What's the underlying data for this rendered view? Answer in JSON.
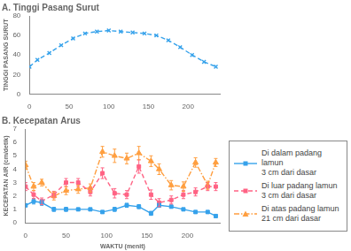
{
  "chart_data": [
    {
      "type": "line",
      "title": "A. Tinggi Pasang Surut",
      "y_label": "TINGGI PASANG SURUT",
      "x": [
        0,
        10,
        25,
        40,
        55,
        70,
        85,
        100,
        115,
        130,
        145,
        160,
        175,
        190,
        205,
        220,
        235
      ],
      "series": [
        {
          "values": [
            28,
            35,
            42,
            50,
            57,
            62,
            64,
            65,
            64,
            63,
            62,
            60,
            55,
            48,
            40,
            33,
            28
          ],
          "color": "#36a2eb",
          "marker": "x",
          "line_style": "dashed"
        }
      ],
      "xlim": [
        0,
        240
      ],
      "ylim": [
        0,
        80
      ],
      "xticks": [
        0,
        50,
        100,
        150,
        200
      ],
      "yticks": [
        0,
        20,
        40,
        60,
        80
      ],
      "grid": false
    },
    {
      "type": "line",
      "title": "B. Kecepatan Arus",
      "x_label": "WAKTU (menit)",
      "y_label": "KECEPATAN AIR (cm/detik)",
      "x": [
        0,
        10,
        20,
        35,
        50,
        65,
        80,
        95,
        110,
        125,
        140,
        155,
        165,
        180,
        195,
        210,
        225,
        235
      ],
      "series": [
        {
          "name": "Di dalam padang lamun\n3 cm dari dasar",
          "color": "#36a2eb",
          "marker": "square",
          "line_style": "solid",
          "values": [
            1.3,
            1.6,
            1.5,
            1.0,
            1.0,
            1.0,
            1.0,
            0.8,
            1.0,
            1.3,
            1.2,
            0.7,
            1.3,
            1.2,
            1.0,
            0.8,
            0.8,
            0.5
          ],
          "errors": [
            0.1,
            0.2,
            0.2,
            0.15,
            0.15,
            0.1,
            0.1,
            0.1,
            0.15,
            0.15,
            0.15,
            0.15,
            0.15,
            0.1,
            0.1,
            0.1,
            0.1,
            0.1
          ]
        },
        {
          "name": "Di luar padang lamun\n3 cm dari dasar",
          "color": "#ff6384",
          "marker": "square",
          "line_style": "dashed",
          "values": [
            2.7,
            2.1,
            1.6,
            2.1,
            3.0,
            3.0,
            2.3,
            3.7,
            2.2,
            2.1,
            4.2,
            2.1,
            1.5,
            1.7,
            2.1,
            2.3,
            2.7,
            2.7
          ],
          "errors": [
            0.3,
            0.3,
            0.25,
            0.25,
            0.3,
            0.3,
            0.3,
            0.4,
            0.35,
            0.3,
            0.5,
            0.35,
            0.3,
            0.3,
            0.3,
            0.3,
            0.3,
            0.3
          ]
        },
        {
          "name": "Di atas padang lamun\n21 cm dari dasar",
          "color": "#ff9f40",
          "marker": "triangle",
          "line_style": "dashdot",
          "values": [
            4.3,
            2.7,
            3.0,
            2.0,
            2.4,
            2.5,
            2.6,
            5.3,
            5.0,
            4.8,
            5.2,
            4.6,
            4.0,
            2.8,
            2.7,
            4.5,
            2.8,
            4.5
          ],
          "errors": [
            0.3,
            0.3,
            0.25,
            0.3,
            0.3,
            0.3,
            0.3,
            0.4,
            0.5,
            0.4,
            0.5,
            0.4,
            0.4,
            0.35,
            0.35,
            0.35,
            0.3,
            0.3
          ]
        }
      ],
      "xlim": [
        0,
        240
      ],
      "ylim": [
        0,
        7
      ],
      "xticks": [
        0,
        50,
        100,
        150,
        200
      ],
      "yticks": [
        0,
        1,
        2,
        3,
        4,
        5,
        6,
        7
      ],
      "grid": false,
      "legend": "right"
    }
  ]
}
